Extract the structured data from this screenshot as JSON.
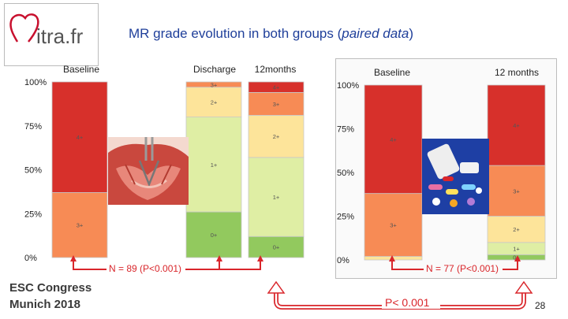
{
  "slide": {
    "title_main": "MR grade evolution in both groups (",
    "title_italic": "paired data",
    "title_end": ")",
    "logo_text": "itra.fr",
    "footer_line1": "ESC Congress",
    "footer_line2": "Munich 2018",
    "page_number": "28"
  },
  "colors": {
    "grade_4": "#d7302b",
    "grade_3": "#f78b55",
    "grade_2": "#fde49a",
    "grade_1": "#dfeea4",
    "grade_0": "#92c95e",
    "accent_red": "#d9262b",
    "title_blue": "#1f3f9a"
  },
  "chart_data": [
    {
      "type": "bar",
      "stacked": true,
      "group": "left",
      "categories": [
        "Baseline",
        "Discharge",
        "12months"
      ],
      "y_tick_labels": [
        "100%",
        "75%",
        "50%",
        "25%",
        "0%"
      ],
      "ylim": [
        0,
        100
      ],
      "series": [
        {
          "name": "0+",
          "values": [
            0,
            26,
            12
          ]
        },
        {
          "name": "1+",
          "values": [
            0,
            54,
            45
          ]
        },
        {
          "name": "2+",
          "values": [
            0,
            17,
            24
          ]
        },
        {
          "name": "3+",
          "values": [
            37,
            3,
            13
          ]
        },
        {
          "name": "4+",
          "values": [
            63,
            0,
            6
          ]
        }
      ],
      "annotation": "N = 89 (P<0.001)"
    },
    {
      "type": "bar",
      "stacked": true,
      "group": "right",
      "categories": [
        "Baseline",
        "12 months"
      ],
      "y_tick_labels": [
        "100%",
        "75%",
        "50%",
        "25%",
        "0%"
      ],
      "ylim": [
        0,
        100
      ],
      "series": [
        {
          "name": "0+",
          "values": [
            0,
            3
          ]
        },
        {
          "name": "1+",
          "values": [
            0,
            7
          ]
        },
        {
          "name": "2+",
          "values": [
            2,
            15
          ]
        },
        {
          "name": "3+",
          "values": [
            36,
            29
          ]
        },
        {
          "name": "4+",
          "values": [
            62,
            46
          ]
        }
      ],
      "annotation": "N = 77 (P<0.001)"
    }
  ],
  "comparison_label": "P< 0.001"
}
